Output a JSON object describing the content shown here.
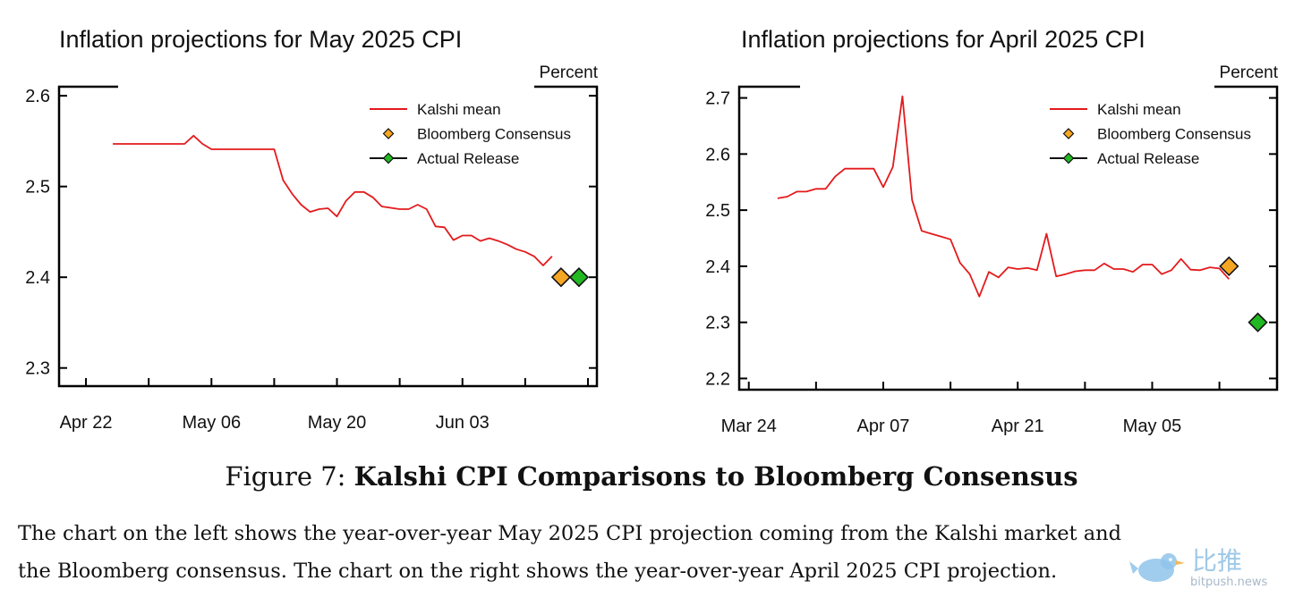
{
  "chart_data": [
    {
      "type": "line",
      "title": "Inflation projections for May 2025 CPI",
      "unit_label": "Percent",
      "x_tick_labels": [
        "Apr 22",
        "May 06",
        "May 20",
        "Jun 03"
      ],
      "x_tick_dates": [
        "2025-04-22",
        "2025-05-06",
        "2025-05-20",
        "2025-06-03"
      ],
      "xlim": [
        "2025-04-19",
        "2025-06-18"
      ],
      "y_ticks": [
        2.3,
        2.4,
        2.5,
        2.6
      ],
      "y_tick_labels": [
        "2.3",
        "2.4",
        "2.5",
        "2.6"
      ],
      "ylim": [
        2.28,
        2.61
      ],
      "legend_position": "top-right",
      "series": [
        {
          "name": "Kalshi mean",
          "kind": "line",
          "color": "#e41a1c",
          "points": [
            [
              "2025-04-25",
              2.547
            ],
            [
              "2025-04-28",
              2.547
            ],
            [
              "2025-05-01",
              2.547
            ],
            [
              "2025-05-03",
              2.547
            ],
            [
              "2025-05-04",
              2.556
            ],
            [
              "2025-05-05",
              2.547
            ],
            [
              "2025-05-06",
              2.541
            ],
            [
              "2025-05-08",
              2.541
            ],
            [
              "2025-05-10",
              2.541
            ],
            [
              "2025-05-12",
              2.541
            ],
            [
              "2025-05-13",
              2.541
            ],
            [
              "2025-05-14",
              2.507
            ],
            [
              "2025-05-15",
              2.492
            ],
            [
              "2025-05-16",
              2.48
            ],
            [
              "2025-05-17",
              2.472
            ],
            [
              "2025-05-18",
              2.475
            ],
            [
              "2025-05-19",
              2.476
            ],
            [
              "2025-05-20",
              2.467
            ],
            [
              "2025-05-21",
              2.484
            ],
            [
              "2025-05-22",
              2.494
            ],
            [
              "2025-05-23",
              2.494
            ],
            [
              "2025-05-24",
              2.488
            ],
            [
              "2025-05-25",
              2.478
            ],
            [
              "2025-05-27",
              2.475
            ],
            [
              "2025-05-28",
              2.475
            ],
            [
              "2025-05-29",
              2.48
            ],
            [
              "2025-05-30",
              2.475
            ],
            [
              "2025-05-31",
              2.456
            ],
            [
              "2025-06-01",
              2.455
            ],
            [
              "2025-06-02",
              2.441
            ],
            [
              "2025-06-03",
              2.446
            ],
            [
              "2025-06-04",
              2.446
            ],
            [
              "2025-06-05",
              2.44
            ],
            [
              "2025-06-06",
              2.443
            ],
            [
              "2025-06-07",
              2.44
            ],
            [
              "2025-06-08",
              2.436
            ],
            [
              "2025-06-09",
              2.431
            ],
            [
              "2025-06-10",
              2.428
            ],
            [
              "2025-06-11",
              2.423
            ],
            [
              "2025-06-12",
              2.413
            ],
            [
              "2025-06-13",
              2.423
            ]
          ]
        },
        {
          "name": "Bloomberg Consensus",
          "kind": "marker",
          "color": "#f5a623",
          "points": [
            [
              "2025-06-14",
              2.4
            ]
          ]
        },
        {
          "name": "Actual Release",
          "kind": "marker",
          "color": "#22b822",
          "points": [
            [
              "2025-06-16",
              2.4
            ]
          ]
        }
      ]
    },
    {
      "type": "line",
      "title": "Inflation projections for April 2025 CPI",
      "unit_label": "Percent",
      "x_tick_labels": [
        "Mar 24",
        "Apr 07",
        "Apr 21",
        "May 05"
      ],
      "x_tick_dates": [
        "2025-03-24",
        "2025-04-07",
        "2025-04-21",
        "2025-05-05"
      ],
      "xlim": [
        "2025-03-23",
        "2025-05-18"
      ],
      "y_ticks": [
        2.2,
        2.3,
        2.4,
        2.5,
        2.6,
        2.7
      ],
      "y_tick_labels": [
        "2.2",
        "2.3",
        "2.4",
        "2.5",
        "2.6",
        "2.7"
      ],
      "ylim": [
        2.18,
        2.72
      ],
      "legend_position": "top-right",
      "series": [
        {
          "name": "Kalshi mean",
          "kind": "line",
          "color": "#e41a1c",
          "points": [
            [
              "2025-03-27",
              2.521
            ],
            [
              "2025-03-28",
              2.524
            ],
            [
              "2025-03-29",
              2.533
            ],
            [
              "2025-03-30",
              2.533
            ],
            [
              "2025-03-31",
              2.538
            ],
            [
              "2025-04-01",
              2.538
            ],
            [
              "2025-04-02",
              2.56
            ],
            [
              "2025-04-03",
              2.574
            ],
            [
              "2025-04-04",
              2.574
            ],
            [
              "2025-04-05",
              2.574
            ],
            [
              "2025-04-06",
              2.574
            ],
            [
              "2025-04-07",
              2.541
            ],
            [
              "2025-04-08",
              2.577
            ],
            [
              "2025-04-09",
              2.703
            ],
            [
              "2025-04-10",
              2.518
            ],
            [
              "2025-04-11",
              2.463
            ],
            [
              "2025-04-12",
              2.458
            ],
            [
              "2025-04-13",
              2.453
            ],
            [
              "2025-04-14",
              2.448
            ],
            [
              "2025-04-15",
              2.406
            ],
            [
              "2025-04-16",
              2.386
            ],
            [
              "2025-04-17",
              2.346
            ],
            [
              "2025-04-18",
              2.39
            ],
            [
              "2025-04-19",
              2.38
            ],
            [
              "2025-04-20",
              2.398
            ],
            [
              "2025-04-21",
              2.395
            ],
            [
              "2025-04-22",
              2.397
            ],
            [
              "2025-04-23",
              2.393
            ],
            [
              "2025-04-24",
              2.458
            ],
            [
              "2025-04-25",
              2.382
            ],
            [
              "2025-04-26",
              2.386
            ],
            [
              "2025-04-27",
              2.391
            ],
            [
              "2025-04-28",
              2.393
            ],
            [
              "2025-04-29",
              2.393
            ],
            [
              "2025-04-30",
              2.405
            ],
            [
              "2025-05-01",
              2.395
            ],
            [
              "2025-05-02",
              2.395
            ],
            [
              "2025-05-03",
              2.39
            ],
            [
              "2025-05-04",
              2.403
            ],
            [
              "2025-05-05",
              2.403
            ],
            [
              "2025-05-06",
              2.386
            ],
            [
              "2025-05-07",
              2.393
            ],
            [
              "2025-05-08",
              2.413
            ],
            [
              "2025-05-09",
              2.394
            ],
            [
              "2025-05-10",
              2.393
            ],
            [
              "2025-05-11",
              2.398
            ],
            [
              "2025-05-12",
              2.396
            ],
            [
              "2025-05-13",
              2.377
            ]
          ]
        },
        {
          "name": "Bloomberg Consensus",
          "kind": "marker",
          "color": "#f5a623",
          "points": [
            [
              "2025-05-13",
              2.4
            ]
          ]
        },
        {
          "name": "Actual Release",
          "kind": "marker",
          "color": "#22b822",
          "points": [
            [
              "2025-05-16",
              2.3
            ]
          ]
        }
      ]
    }
  ],
  "caption": {
    "figure_label": "Figure 7:",
    "figure_title": "Kalshi CPI Comparisons to Bloomberg Consensus",
    "line1": "The chart on the left shows the year-over-year May 2025 CPI projection coming from the Kalshi market and",
    "line2": "the Bloomberg consensus. The chart on the right shows the year-over-year April 2025 CPI projection."
  },
  "watermark": {
    "text_cn": "比推",
    "text_en": "bitpush.news",
    "color": "#9ec9e8"
  }
}
